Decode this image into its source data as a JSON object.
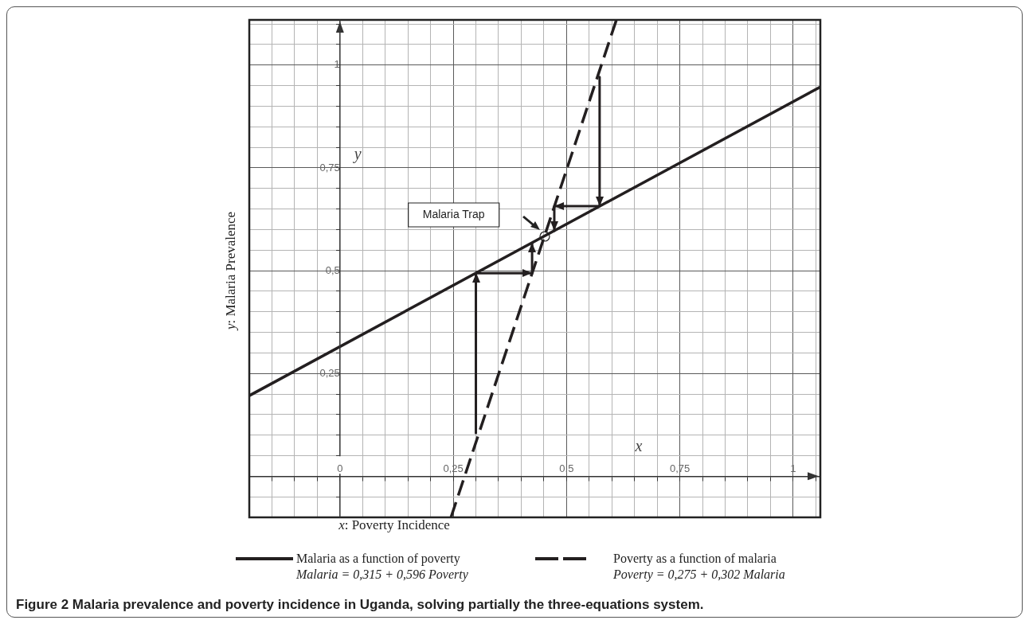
{
  "chart_data": {
    "type": "line",
    "title": "Figure 2 Malaria prevalence and poverty incidence in Uganda, solving partially the three-equations system.",
    "xlabel": "x: Poverty Incidence",
    "ylabel": "y: Malaria Prevalence",
    "xlim": [
      -0.2,
      1.06
    ],
    "ylim": [
      -0.1,
      1.11
    ],
    "xticks": [
      {
        "value": -0.15,
        "label": null
      },
      {
        "value": -0.1,
        "label": null
      },
      {
        "value": -0.05,
        "label": null
      },
      {
        "value": 0,
        "label": "0"
      },
      {
        "value": 0.05,
        "label": null
      },
      {
        "value": 0.1,
        "label": null
      },
      {
        "value": 0.15,
        "label": null
      },
      {
        "value": 0.2,
        "label": null
      },
      {
        "value": 0.25,
        "label": "0,25"
      },
      {
        "value": 0.3,
        "label": null
      },
      {
        "value": 0.35,
        "label": null
      },
      {
        "value": 0.4,
        "label": null
      },
      {
        "value": 0.45,
        "label": null
      },
      {
        "value": 0.5,
        "label": "0,5"
      },
      {
        "value": 0.55,
        "label": null
      },
      {
        "value": 0.6,
        "label": null
      },
      {
        "value": 0.65,
        "label": null
      },
      {
        "value": 0.7,
        "label": null
      },
      {
        "value": 0.75,
        "label": "0,75"
      },
      {
        "value": 0.8,
        "label": null
      },
      {
        "value": 0.85,
        "label": null
      },
      {
        "value": 0.9,
        "label": null
      },
      {
        "value": 0.95,
        "label": null
      },
      {
        "value": 1,
        "label": "1"
      },
      {
        "value": 1.05,
        "label": null
      }
    ],
    "yticks": [
      {
        "value": -0.05,
        "label": null
      },
      {
        "value": 0,
        "label": null
      },
      {
        "value": 0.05,
        "label": null
      },
      {
        "value": 0.1,
        "label": null
      },
      {
        "value": 0.15,
        "label": null
      },
      {
        "value": 0.2,
        "label": null
      },
      {
        "value": 0.25,
        "label": "0,25"
      },
      {
        "value": 0.3,
        "label": null
      },
      {
        "value": 0.35,
        "label": null
      },
      {
        "value": 0.4,
        "label": null
      },
      {
        "value": 0.45,
        "label": null
      },
      {
        "value": 0.5,
        "label": "0,5"
      },
      {
        "value": 0.55,
        "label": null
      },
      {
        "value": 0.6,
        "label": null
      },
      {
        "value": 0.65,
        "label": null
      },
      {
        "value": 0.7,
        "label": null
      },
      {
        "value": 0.75,
        "label": "0,75"
      },
      {
        "value": 0.8,
        "label": null
      },
      {
        "value": 0.85,
        "label": null
      },
      {
        "value": 0.9,
        "label": null
      },
      {
        "value": 0.95,
        "label": null
      },
      {
        "value": 1,
        "label": "1"
      },
      {
        "value": 1.05,
        "label": null
      },
      {
        "value": 1.1,
        "label": null
      }
    ],
    "grid": true,
    "legend": "bottom",
    "marker": "none",
    "series": [
      {
        "name": "Malaria as a function of poverty",
        "color": "#231f20",
        "line_style": "solid",
        "x": [
          -0.2,
          1.06
        ],
        "values": [
          0.196,
          0.947
        ]
      },
      {
        "name": "Poverty as a function of malaria",
        "color": "#231f20",
        "line_style": "dashed",
        "x": [
          0.245,
          0.61
        ],
        "values": [
          -0.1,
          1.11
        ]
      },
      {
        "color": "#231f20",
        "line_style": "solid",
        "x": [
          0.3,
          0.3,
          0.424,
          0.424
        ],
        "values": [
          0.103,
          0.494,
          0.494,
          0.568
        ]
      },
      {
        "color": "#231f20",
        "line_style": "solid",
        "x": [
          0.573,
          0.573,
          0.473,
          0.473
        ],
        "values": [
          0.971,
          0.657,
          0.657,
          0.597
        ]
      }
    ],
    "annotations": [
      "Malaria Trap",
      "y",
      "x",
      "Malaria = 0,315 + 0,596 Poverty",
      "Poverty = 0,275 + 0,302 Malaria"
    ]
  }
}
